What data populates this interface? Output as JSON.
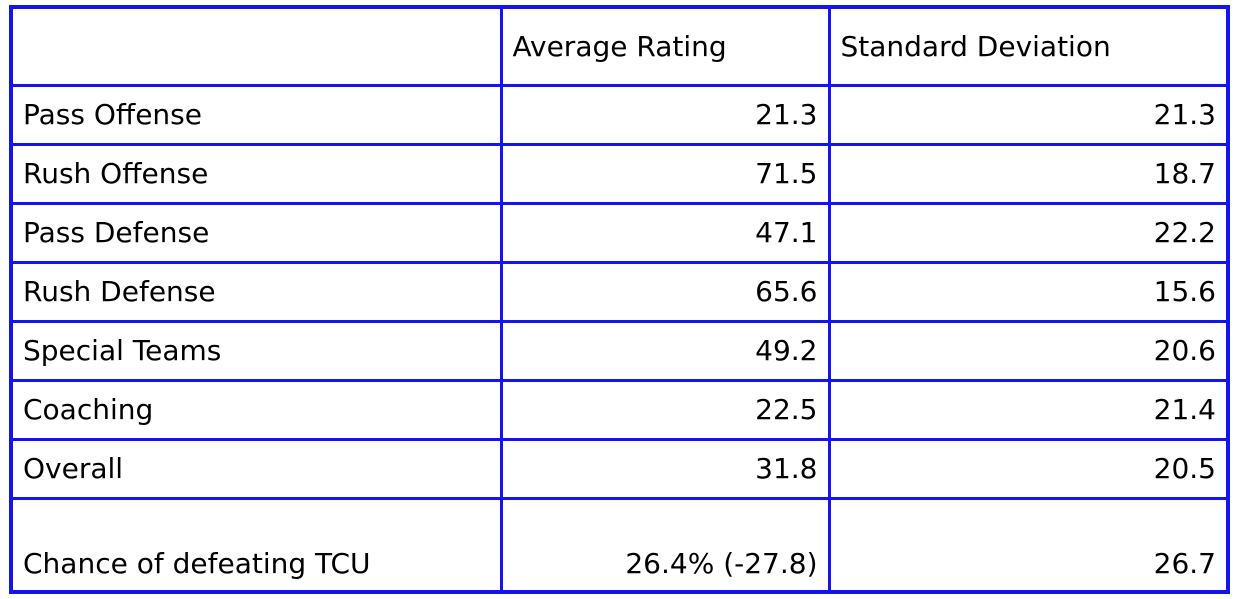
{
  "colors": {
    "border": "#1414f0",
    "text": "#000000",
    "background": "#ffffff"
  },
  "chart_data": {
    "type": "table",
    "title": "",
    "columns": [
      "",
      "Average Rating",
      "Standard Deviation"
    ],
    "rows": [
      [
        "Pass Offense",
        "21.3",
        "21.3"
      ],
      [
        "Rush Offense",
        "71.5",
        "18.7"
      ],
      [
        "Pass Defense",
        "47.1",
        "22.2"
      ],
      [
        "Rush Defense",
        "65.6",
        "15.6"
      ],
      [
        "Special Teams",
        "49.2",
        "20.6"
      ],
      [
        "Coaching",
        "22.5",
        "21.4"
      ],
      [
        "Overall",
        "31.8",
        "20.5"
      ],
      [
        "Chance of defeating TCU",
        "26.4% (-27.8)",
        "26.7"
      ]
    ],
    "layout": {
      "value_alignment": "right",
      "label_alignment": "left",
      "grid": true,
      "last_row_tall_bottom_aligned": true
    }
  }
}
